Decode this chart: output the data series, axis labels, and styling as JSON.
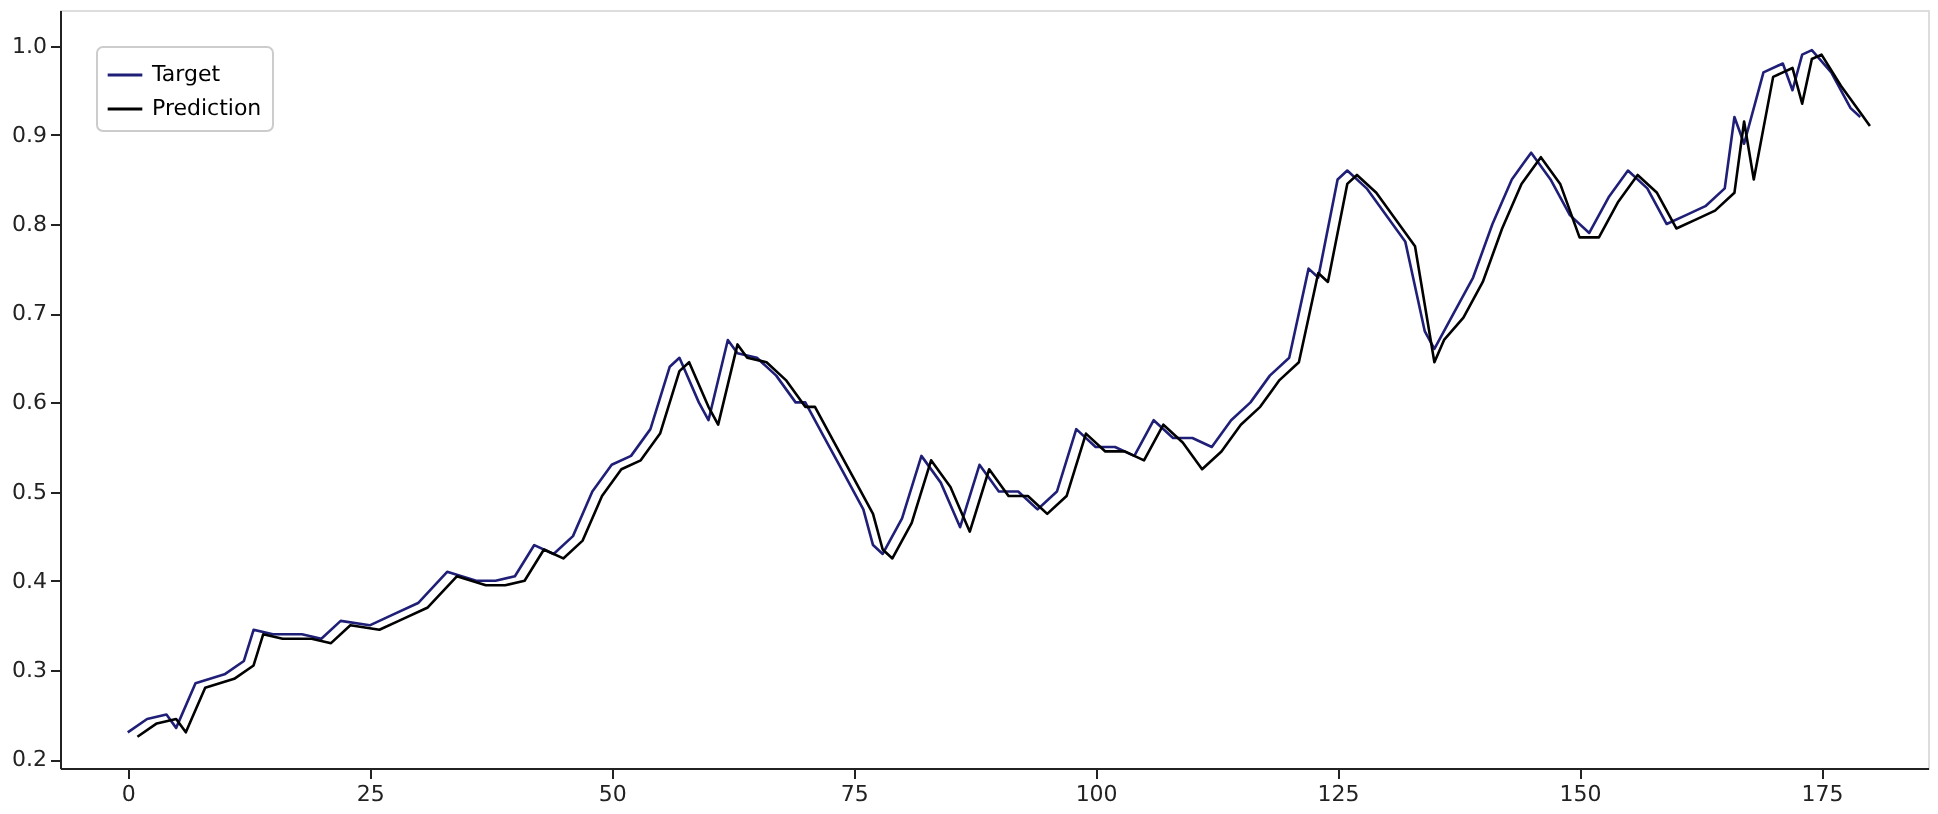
{
  "chart_data": {
    "type": "line",
    "xlim": [
      -7,
      186
    ],
    "xticks": [
      0,
      25,
      50,
      75,
      100,
      125,
      150,
      175
    ],
    "ylim": [
      0.19,
      1.04
    ],
    "yticks": [
      0.2,
      0.3,
      0.4,
      0.5,
      0.6,
      0.7,
      0.8,
      0.9,
      {
        "value": 1.0,
        "label": "1.0"
      }
    ],
    "grid": false,
    "legend": "top left",
    "marker": "none",
    "line_style": "solid",
    "series": [
      {
        "name": "Target",
        "color": "#1f1f78",
        "x": [
          0,
          2,
          4,
          5,
          7,
          10,
          12,
          13,
          15,
          18,
          20,
          22,
          25,
          27,
          30,
          33,
          36,
          38,
          40,
          42,
          44,
          46,
          48,
          50,
          52,
          54,
          56,
          57,
          59,
          60,
          62,
          63,
          65,
          67,
          69,
          70,
          72,
          74,
          76,
          77,
          78,
          80,
          82,
          84,
          86,
          88,
          90,
          92,
          94,
          96,
          98,
          100,
          102,
          104,
          106,
          108,
          110,
          112,
          114,
          116,
          118,
          120,
          121,
          122,
          123,
          125,
          126,
          128,
          130,
          132,
          134,
          135,
          137,
          139,
          141,
          143,
          145,
          147,
          149,
          151,
          153,
          155,
          157,
          159,
          161,
          163,
          165,
          166,
          167,
          169,
          171,
          172,
          173,
          174,
          176,
          178,
          179
        ],
        "values": [
          0.23,
          0.245,
          0.25,
          0.235,
          0.285,
          0.295,
          0.31,
          0.345,
          0.34,
          0.34,
          0.335,
          0.355,
          0.35,
          0.36,
          0.375,
          0.41,
          0.4,
          0.4,
          0.405,
          0.44,
          0.43,
          0.45,
          0.5,
          0.53,
          0.54,
          0.57,
          0.64,
          0.65,
          0.6,
          0.58,
          0.67,
          0.655,
          0.65,
          0.63,
          0.6,
          0.6,
          0.56,
          0.52,
          0.48,
          0.44,
          0.43,
          0.47,
          0.54,
          0.51,
          0.46,
          0.53,
          0.5,
          0.5,
          0.48,
          0.5,
          0.57,
          0.55,
          0.55,
          0.54,
          0.58,
          0.56,
          0.56,
          0.55,
          0.58,
          0.6,
          0.63,
          0.65,
          0.7,
          0.75,
          0.74,
          0.85,
          0.86,
          0.84,
          0.81,
          0.78,
          0.68,
          0.66,
          0.7,
          0.74,
          0.8,
          0.85,
          0.88,
          0.85,
          0.81,
          0.79,
          0.83,
          0.86,
          0.84,
          0.8,
          0.81,
          0.82,
          0.84,
          0.92,
          0.89,
          0.97,
          0.98,
          0.95,
          0.99,
          0.995,
          0.97,
          0.93,
          0.92
        ]
      },
      {
        "name": "Prediction",
        "color": "#000000",
        "x": [
          1,
          3,
          5,
          6,
          8,
          11,
          13,
          14,
          16,
          19,
          21,
          23,
          26,
          28,
          31,
          34,
          37,
          39,
          41,
          43,
          45,
          47,
          49,
          51,
          53,
          55,
          57,
          58,
          60,
          61,
          63,
          64,
          66,
          68,
          70,
          71,
          73,
          75,
          77,
          78,
          79,
          81,
          83,
          85,
          87,
          89,
          91,
          93,
          95,
          97,
          99,
          101,
          103,
          105,
          107,
          109,
          111,
          113,
          115,
          117,
          119,
          121,
          122,
          123,
          124,
          126,
          127,
          129,
          131,
          133,
          135,
          136,
          138,
          140,
          142,
          144,
          146,
          148,
          150,
          152,
          154,
          156,
          158,
          160,
          162,
          164,
          166,
          167,
          168,
          170,
          172,
          173,
          174,
          175,
          177,
          179,
          180
        ],
        "values": [
          0.225,
          0.24,
          0.245,
          0.23,
          0.28,
          0.29,
          0.305,
          0.34,
          0.335,
          0.335,
          0.33,
          0.35,
          0.345,
          0.355,
          0.37,
          0.405,
          0.395,
          0.395,
          0.4,
          0.435,
          0.425,
          0.445,
          0.495,
          0.525,
          0.535,
          0.565,
          0.635,
          0.645,
          0.595,
          0.575,
          0.665,
          0.65,
          0.645,
          0.625,
          0.595,
          0.595,
          0.555,
          0.515,
          0.475,
          0.435,
          0.425,
          0.465,
          0.535,
          0.505,
          0.455,
          0.525,
          0.495,
          0.495,
          0.475,
          0.495,
          0.565,
          0.545,
          0.545,
          0.535,
          0.575,
          0.555,
          0.525,
          0.545,
          0.575,
          0.595,
          0.625,
          0.645,
          0.695,
          0.745,
          0.735,
          0.845,
          0.855,
          0.835,
          0.805,
          0.775,
          0.645,
          0.67,
          0.695,
          0.735,
          0.795,
          0.845,
          0.875,
          0.845,
          0.785,
          0.785,
          0.825,
          0.855,
          0.835,
          0.795,
          0.805,
          0.815,
          0.835,
          0.915,
          0.85,
          0.965,
          0.975,
          0.935,
          0.985,
          0.99,
          0.955,
          0.925,
          0.91
        ]
      }
    ]
  }
}
